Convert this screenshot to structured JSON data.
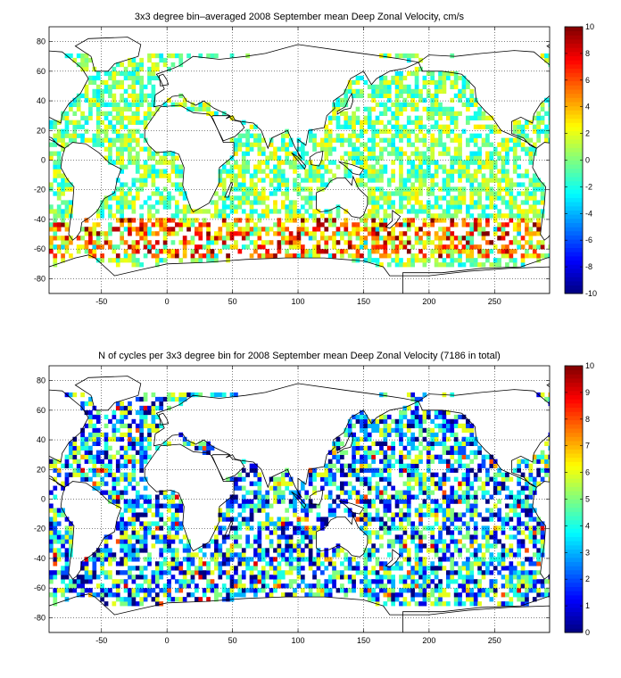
{
  "chart_data": [
    {
      "type": "heatmap",
      "title": "3x3 degree bin–averaged 2008 September mean Deep Zonal Velocity, cm/s",
      "xlim": [
        -90,
        292
      ],
      "ylim": [
        -90,
        90
      ],
      "xticks": [
        -50,
        0,
        50,
        100,
        150,
        200,
        250
      ],
      "yticks": [
        80,
        60,
        40,
        20,
        0,
        -20,
        -40,
        -60,
        -80
      ],
      "grid": true,
      "colorbar": {
        "min": -10,
        "max": 10,
        "ticks": [
          10,
          8,
          6,
          4,
          2,
          0,
          -2,
          -4,
          -6,
          -8,
          -10
        ]
      },
      "bin_size_deg": 3
    },
    {
      "type": "heatmap",
      "title": "N of cycles per 3x3 degree bin for 2008 September mean Deep Zonal Velocity (7186 in total)",
      "total_cycles": 7186,
      "xlim": [
        -90,
        292
      ],
      "ylim": [
        -90,
        90
      ],
      "xticks": [
        -50,
        0,
        50,
        100,
        150,
        200,
        250
      ],
      "yticks": [
        80,
        60,
        40,
        20,
        0,
        -20,
        -40,
        -60,
        -80
      ],
      "grid": true,
      "colorbar": {
        "min": 0,
        "max": 10,
        "ticks": [
          10,
          9,
          8,
          7,
          6,
          5,
          4,
          3,
          2,
          1,
          0
        ]
      },
      "bin_size_deg": 3
    }
  ]
}
